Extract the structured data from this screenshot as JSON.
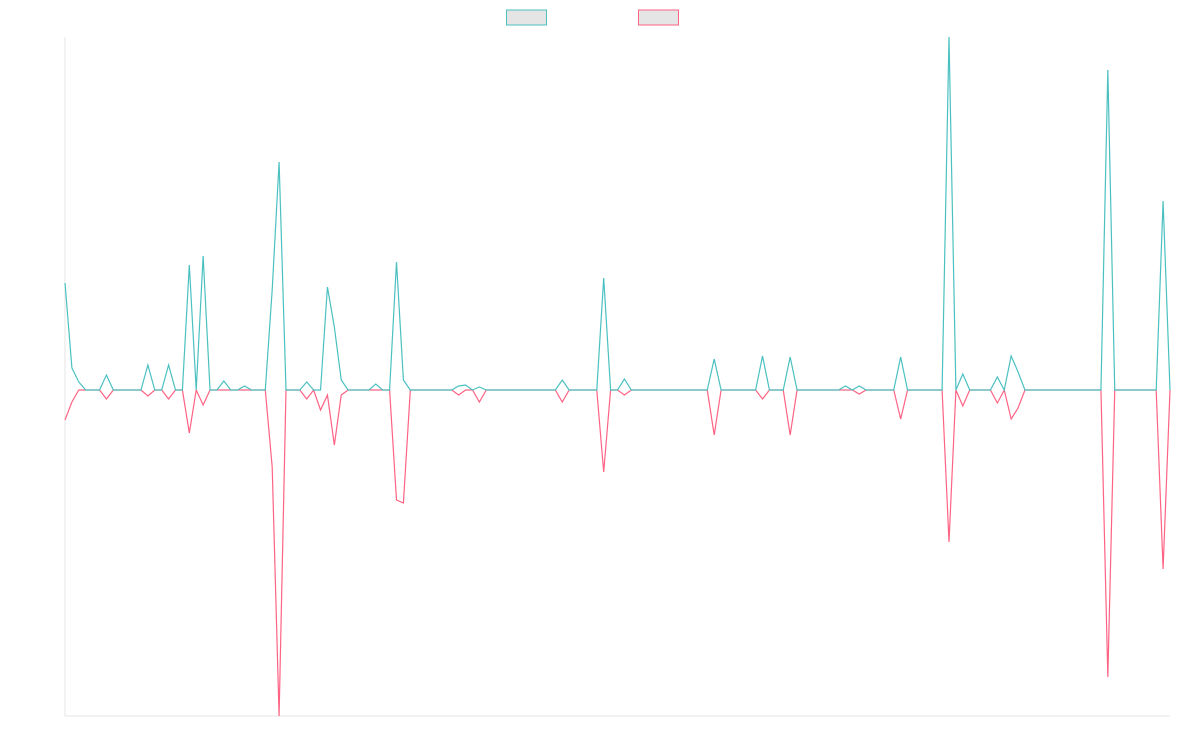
{
  "chart_data": {
    "type": "line",
    "legend": "top",
    "ylim": [
      -326,
      353
    ],
    "series": [
      {
        "color": "#4bc0c0",
        "values": [
          107,
          22,
          8,
          0,
          0,
          0,
          15,
          0,
          0,
          0,
          0,
          0,
          25,
          0,
          0,
          25,
          0,
          0,
          125,
          0,
          134,
          0,
          0,
          9,
          0,
          0,
          4,
          0,
          0,
          0,
          100,
          228,
          0,
          0,
          0,
          8,
          0,
          0,
          103,
          63,
          10,
          0,
          0,
          0,
          0,
          6,
          0,
          0,
          128,
          10,
          0,
          0,
          0,
          0,
          0,
          0,
          0,
          4,
          5,
          0,
          3,
          0,
          0,
          0,
          0,
          0,
          0,
          0,
          0,
          0,
          0,
          0,
          10,
          0,
          0,
          0,
          0,
          0,
          112,
          0,
          0,
          11,
          0,
          0,
          0,
          0,
          0,
          0,
          0,
          0,
          0,
          0,
          0,
          0,
          31,
          0,
          0,
          0,
          0,
          0,
          0,
          34,
          0,
          0,
          0,
          33,
          0,
          0,
          0,
          0,
          0,
          0,
          0,
          4,
          0,
          4,
          0,
          0,
          0,
          0,
          0,
          33,
          0,
          0,
          0,
          0,
          0,
          0,
          353,
          0,
          16,
          0,
          0,
          0,
          0,
          13,
          0,
          34,
          18,
          0,
          0,
          0,
          0,
          0,
          0,
          0,
          0,
          0,
          0,
          0,
          0,
          320,
          0,
          0,
          0,
          0,
          0,
          0,
          0,
          189,
          0
        ]
      },
      {
        "color": "#ff6384",
        "values": [
          -30,
          -12,
          0,
          0,
          0,
          0,
          -9,
          0,
          0,
          0,
          0,
          0,
          -6,
          0,
          0,
          -9,
          0,
          0,
          -43,
          0,
          -15,
          0,
          0,
          0,
          0,
          0,
          0,
          0,
          0,
          0,
          -77,
          -326,
          0,
          0,
          0,
          -9,
          0,
          -20,
          -5,
          -55,
          -5,
          0,
          0,
          0,
          0,
          0,
          0,
          0,
          -110,
          -113,
          0,
          0,
          0,
          0,
          0,
          0,
          0,
          -5,
          0,
          0,
          -12,
          0,
          0,
          0,
          0,
          0,
          0,
          0,
          0,
          0,
          0,
          0,
          -12,
          0,
          0,
          0,
          0,
          0,
          -82,
          0,
          0,
          -5,
          0,
          0,
          0,
          0,
          0,
          0,
          0,
          0,
          0,
          0,
          0,
          0,
          -45,
          0,
          0,
          0,
          0,
          0,
          0,
          -9,
          0,
          0,
          0,
          -45,
          0,
          0,
          0,
          0,
          0,
          0,
          0,
          0,
          0,
          -4,
          0,
          0,
          0,
          0,
          0,
          -29,
          0,
          0,
          0,
          0,
          0,
          0,
          -152,
          0,
          -16,
          0,
          0,
          0,
          0,
          -13,
          0,
          -29,
          -18,
          0,
          0,
          0,
          0,
          0,
          0,
          0,
          0,
          0,
          0,
          0,
          0,
          -287,
          0,
          0,
          0,
          0,
          0,
          0,
          0,
          -179,
          0
        ]
      }
    ]
  }
}
